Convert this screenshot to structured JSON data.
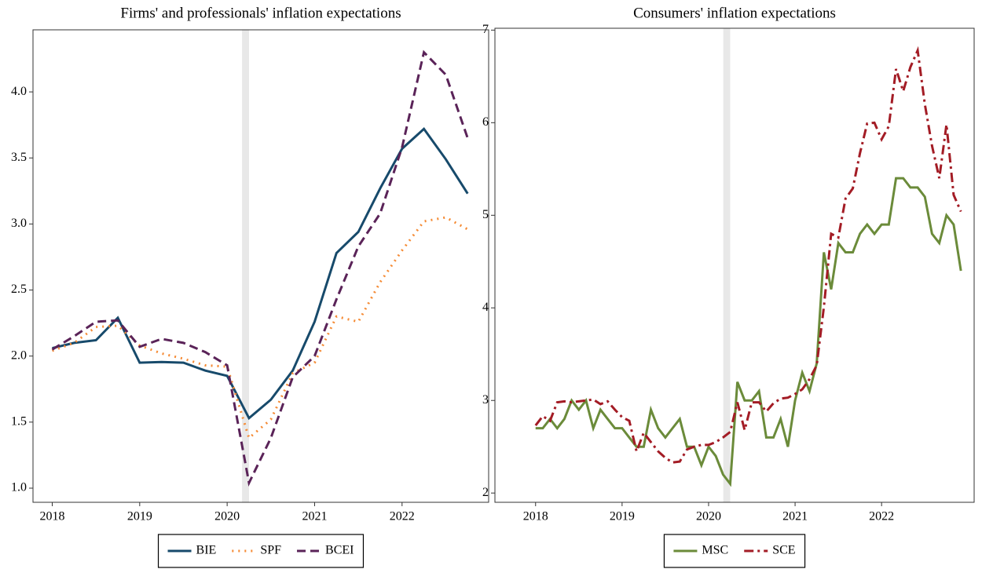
{
  "chart_data": [
    {
      "type": "line",
      "title": "Firms' and professionals' inflation expectations",
      "x": [
        2018,
        2018.25,
        2018.5,
        2018.75,
        2019,
        2019.25,
        2019.5,
        2019.75,
        2020,
        2020.25,
        2020.5,
        2020.75,
        2021,
        2021.25,
        2021.5,
        2021.75,
        2022,
        2022.25,
        2022.5,
        2022.75
      ],
      "series": [
        {
          "name": "BIE",
          "color": "#174a6b",
          "linestyle": "solid",
          "values": [
            2.06,
            2.1,
            2.12,
            2.29,
            1.95,
            1.955,
            1.95,
            1.89,
            1.85,
            1.53,
            1.67,
            1.89,
            2.26,
            2.78,
            2.94,
            3.27,
            3.57,
            3.72,
            3.49,
            3.23
          ]
        },
        {
          "name": "SPF",
          "color": "#f58b35",
          "linestyle": "dotted",
          "values": [
            2.04,
            2.1,
            2.22,
            2.23,
            2.08,
            2.02,
            1.98,
            1.93,
            1.92,
            1.38,
            1.52,
            1.87,
            1.95,
            2.3,
            2.26,
            2.56,
            2.8,
            3.02,
            3.05,
            2.96
          ]
        },
        {
          "name": "BCEI",
          "color": "#5a2358",
          "linestyle": "dashed",
          "values": [
            2.05,
            2.15,
            2.26,
            2.27,
            2.07,
            2.13,
            2.1,
            2.03,
            1.93,
            1.04,
            1.38,
            1.84,
            2.0,
            2.43,
            2.83,
            3.08,
            3.58,
            4.3,
            4.13,
            3.65
          ]
        }
      ],
      "xlim": [
        2017.78,
        2022.99
      ],
      "xticks": [
        2018,
        2019,
        2020,
        2021,
        2022
      ],
      "ylim": [
        0.893,
        4.47
      ],
      "yticks": [
        {
          "value": 1,
          "label": "1.0"
        },
        1.5,
        {
          "value": 2,
          "label": "2.0"
        },
        2.5,
        {
          "value": 3,
          "label": "3.0"
        },
        3.5,
        {
          "value": 4,
          "label": "4.0"
        }
      ],
      "shaded_region": [
        2020.17,
        2020.25
      ],
      "grid": false
    },
    {
      "type": "line",
      "title": "Consumers' inflation expectations",
      "x": [
        2018,
        2018.083,
        2018.167,
        2018.25,
        2018.333,
        2018.417,
        2018.5,
        2018.583,
        2018.667,
        2018.75,
        2018.833,
        2018.917,
        2019,
        2019.083,
        2019.167,
        2019.25,
        2019.333,
        2019.417,
        2019.5,
        2019.583,
        2019.667,
        2019.75,
        2019.833,
        2019.917,
        2020,
        2020.083,
        2020.167,
        2020.25,
        2020.333,
        2020.417,
        2020.5,
        2020.583,
        2020.667,
        2020.75,
        2020.833,
        2020.917,
        2021,
        2021.083,
        2021.167,
        2021.25,
        2021.333,
        2021.417,
        2021.5,
        2021.583,
        2021.667,
        2021.75,
        2021.833,
        2021.917,
        2022,
        2022.083,
        2022.167,
        2022.25,
        2022.333,
        2022.417,
        2022.5,
        2022.583,
        2022.667,
        2022.75,
        2022.833,
        2022.917
      ],
      "series": [
        {
          "name": "MSC",
          "color": "#6b8b3a",
          "linestyle": "solid",
          "values": [
            2.7,
            2.7,
            2.8,
            2.7,
            2.8,
            3.0,
            2.9,
            3.0,
            2.7,
            2.9,
            2.8,
            2.7,
            2.7,
            2.6,
            2.5,
            2.5,
            2.9,
            2.7,
            2.6,
            2.7,
            2.8,
            2.5,
            2.5,
            2.3,
            2.5,
            2.4,
            2.2,
            2.1,
            3.2,
            3.0,
            3.0,
            3.1,
            2.6,
            2.6,
            2.8,
            2.5,
            3.0,
            3.3,
            3.1,
            3.4,
            4.6,
            4.2,
            4.7,
            4.6,
            4.6,
            4.8,
            4.9,
            4.8,
            4.9,
            4.9,
            5.4,
            5.4,
            5.3,
            5.3,
            5.2,
            4.8,
            4.7,
            5.0,
            4.9,
            4.4
          ]
        },
        {
          "name": "SCE",
          "color": "#a31c25",
          "linestyle": "dashdot",
          "values": [
            2.73,
            2.83,
            2.78,
            2.98,
            2.99,
            2.98,
            2.99,
            3.0,
            3.01,
            2.96,
            2.99,
            2.9,
            2.82,
            2.78,
            2.45,
            2.65,
            2.55,
            2.45,
            2.38,
            2.33,
            2.34,
            2.47,
            2.5,
            2.52,
            2.52,
            2.55,
            2.6,
            2.66,
            2.98,
            2.68,
            2.98,
            2.98,
            2.88,
            2.97,
            3.02,
            3.03,
            3.07,
            3.12,
            3.23,
            3.38,
            4.01,
            4.8,
            4.76,
            5.18,
            5.29,
            5.67,
            5.99,
            6.0,
            5.82,
            5.96,
            6.58,
            6.34,
            6.6,
            6.78,
            6.2,
            5.75,
            5.4,
            5.98,
            5.22,
            5.04
          ]
        }
      ],
      "xlim": [
        2017.53,
        2023.07
      ],
      "xticks": [
        2018,
        2019,
        2020,
        2021,
        2022
      ],
      "ylim": [
        1.9,
        7.02
      ],
      "yticks": [
        2,
        3,
        4,
        5,
        6,
        7
      ],
      "shaded_region": [
        2020.17,
        2020.25
      ],
      "grid": false
    }
  ]
}
